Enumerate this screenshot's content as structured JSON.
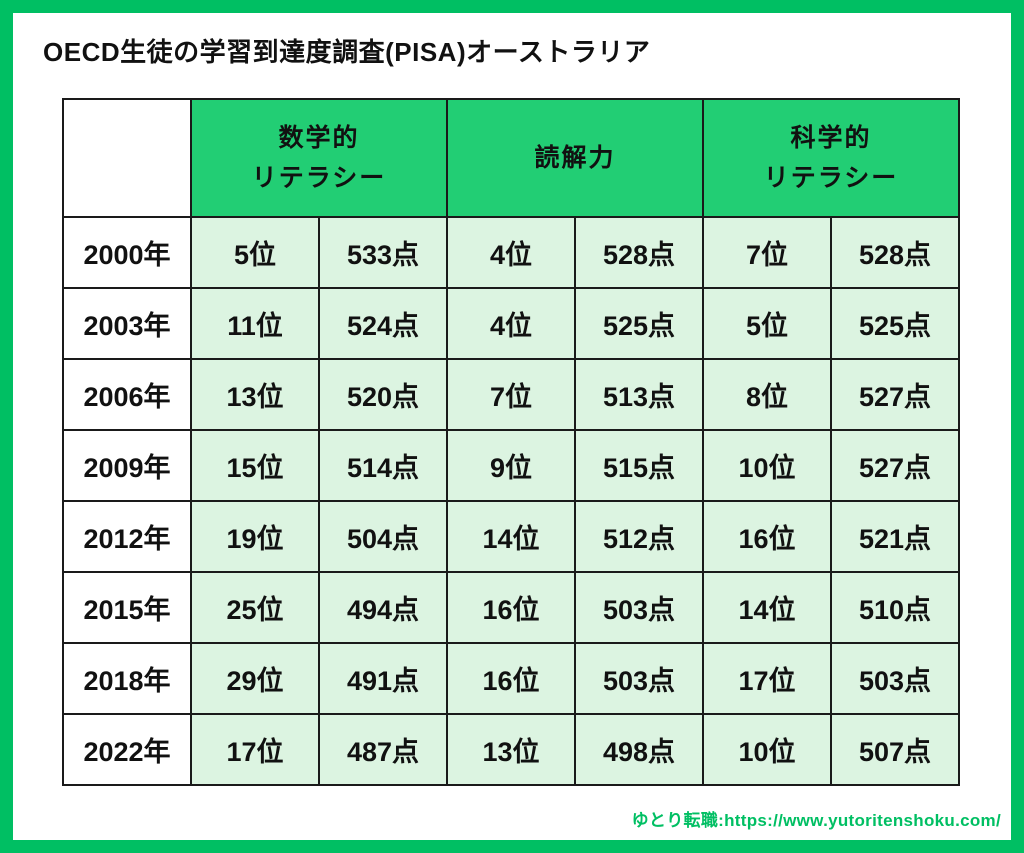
{
  "page": {
    "title": "OECD生徒の学習到達度調査(PISA)オーストラリア",
    "footer": "ゆとり転職:https://www.yutoritenshoku.com/"
  },
  "colors": {
    "frame_green": "#00BF63",
    "header_green": "#22CE74",
    "cell_mint": "#DCF4E1",
    "grid_black": "#1A1A1A",
    "footer_green": "#00BF63"
  },
  "chart_data": {
    "type": "table",
    "title": "OECD生徒の学習到達度調査(PISA)オーストラリア",
    "corner_label": "",
    "column_groups": [
      "数学的\nリテラシー",
      "読解力",
      "科学的\nリテラシー"
    ],
    "columns_per_group": [
      "rank",
      "score"
    ],
    "rows": [
      {
        "year": "2000年",
        "cells": [
          "5位",
          "533点",
          "4位",
          "528点",
          "7位",
          "528点"
        ]
      },
      {
        "year": "2003年",
        "cells": [
          "11位",
          "524点",
          "4位",
          "525点",
          "5位",
          "525点"
        ]
      },
      {
        "year": "2006年",
        "cells": [
          "13位",
          "520点",
          "7位",
          "513点",
          "8位",
          "527点"
        ]
      },
      {
        "year": "2009年",
        "cells": [
          "15位",
          "514点",
          "9位",
          "515点",
          "10位",
          "527点"
        ]
      },
      {
        "year": "2012年",
        "cells": [
          "19位",
          "504点",
          "14位",
          "512点",
          "16位",
          "521点"
        ]
      },
      {
        "year": "2015年",
        "cells": [
          "25位",
          "494点",
          "16位",
          "503点",
          "14位",
          "510点"
        ]
      },
      {
        "year": "2018年",
        "cells": [
          "29位",
          "491点",
          "16位",
          "503点",
          "17位",
          "503点"
        ]
      },
      {
        "year": "2022年",
        "cells": [
          "17位",
          "487点",
          "13位",
          "498点",
          "10位",
          "507点"
        ]
      }
    ]
  }
}
